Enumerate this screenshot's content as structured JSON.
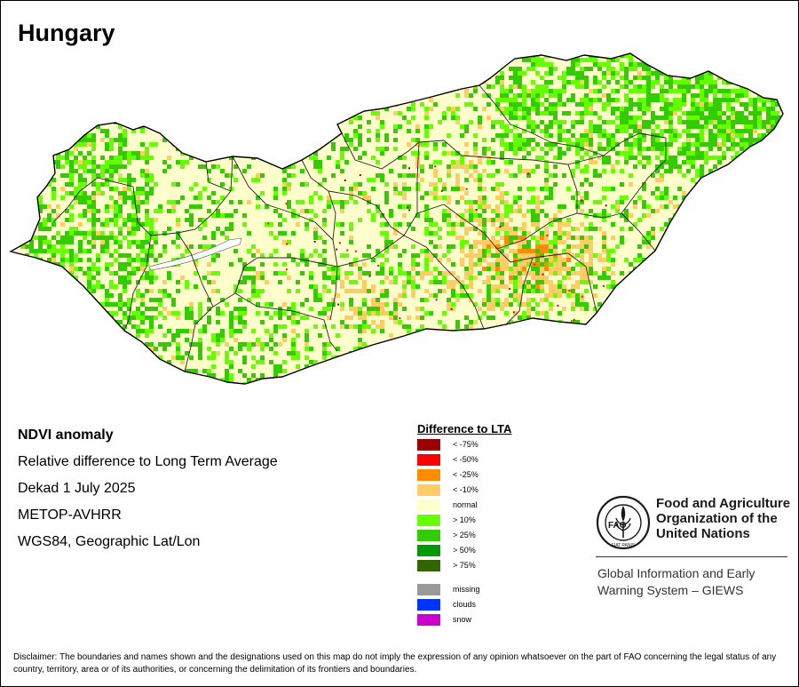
{
  "country": "Hungary",
  "info": {
    "product": "NDVI anomaly",
    "description": "Relative difference to Long Term Average",
    "period": "Dekad 1 July 2025",
    "sensor": "METOP-AVHRR",
    "projection": "WGS84, Geographic Lat/Lon"
  },
  "legend": {
    "title": "Difference to LTA",
    "classes": [
      {
        "label": "< -75%",
        "color": "#990000"
      },
      {
        "label": "< -50%",
        "color": "#ff0000"
      },
      {
        "label": "< -25%",
        "color": "#ff8c00"
      },
      {
        "label": "< -10%",
        "color": "#ffcc66"
      },
      {
        "label": "normal",
        "color": "#ffffcc"
      },
      {
        "label": "> 10%",
        "color": "#66ff00"
      },
      {
        "label": "> 25%",
        "color": "#33cc00"
      },
      {
        "label": "> 50%",
        "color": "#009900"
      },
      {
        "label": "> 75%",
        "color": "#336600"
      }
    ],
    "extra": [
      {
        "label": "missing",
        "color": "#999999"
      },
      {
        "label": "clouds",
        "color": "#0033ff"
      },
      {
        "label": "snow",
        "color": "#cc00cc"
      }
    ]
  },
  "fao": {
    "name": "Food and Agriculture\nOrganization of the\nUnited Nations",
    "logo_text": "FAO",
    "motto": "FIAT PANIS",
    "giews": "Global Information and Early\nWarning System – GIEWS"
  },
  "disclaimer": "Disclaimer: The boundaries and names shown and the designations used on this map do not imply the expression of any opinion whatsoever on the part of FAO concerning the legal status of any country, territory, area or of its authorities, or concerning the delimitation of its frontiers and boundaries."
}
